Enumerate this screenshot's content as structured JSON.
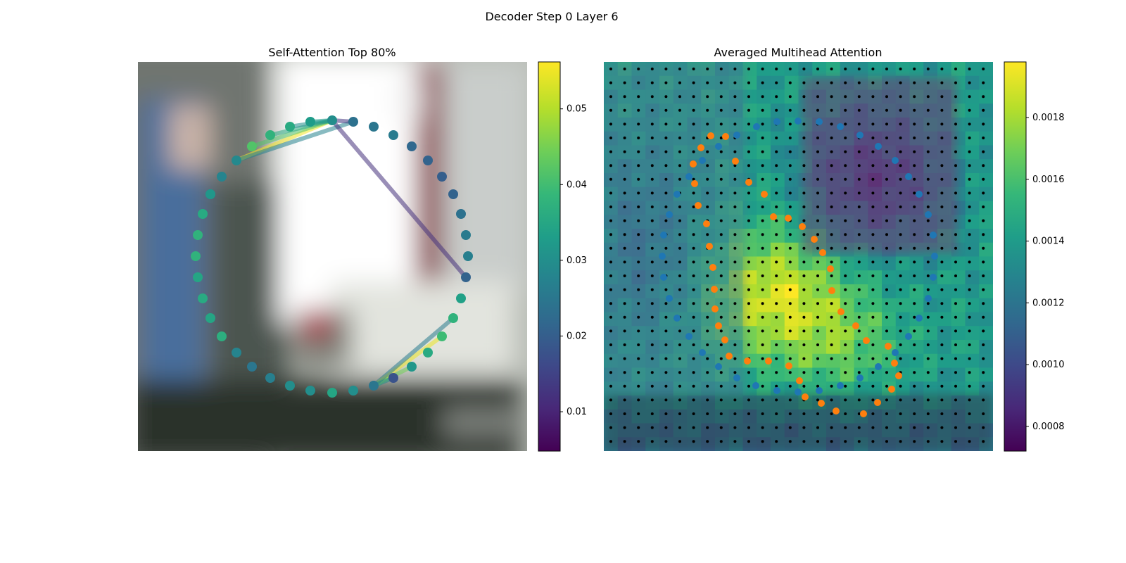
{
  "figure_title": "Decoder Step 0 Layer 6",
  "colormap": [
    "#440154",
    "#482878",
    "#3e4989",
    "#31688e",
    "#26828e",
    "#1f9e89",
    "#35b779",
    "#6ece58",
    "#b5de2b",
    "#fde725"
  ],
  "chart_data": [
    {
      "type": "scatter",
      "title": "Self-Attention Top 80%",
      "grid": false,
      "background": "blurred photograph",
      "axes_visible": false,
      "colorbar": {
        "range": [
          0.0048,
          0.0562
        ],
        "ticks": [
          0.01,
          0.02,
          0.03,
          0.04,
          0.05
        ],
        "tick_labels": [
          "0.01",
          "0.02",
          "0.03",
          "0.04",
          "0.05"
        ]
      },
      "edges_note": "attention links drawn between contour points",
      "edges": [
        {
          "from": 3,
          "to": 8,
          "value": 0.0555
        },
        {
          "from": 4,
          "to": 8,
          "value": 0.042
        },
        {
          "from": 5,
          "to": 8,
          "value": 0.036
        },
        {
          "from": 6,
          "to": 8,
          "value": 0.03
        },
        {
          "from": 3,
          "to": 9,
          "value": 0.028
        },
        {
          "from": 7,
          "to": 8,
          "value": 0.033
        },
        {
          "from": 8,
          "to": 19,
          "value": 0.012
        },
        {
          "from": 9,
          "to": 8,
          "value": 0.013
        },
        {
          "from": 22,
          "to": 26,
          "value": 0.0548
        },
        {
          "from": 24,
          "to": 26,
          "value": 0.045
        },
        {
          "from": 25,
          "to": 26,
          "value": 0.03
        },
        {
          "from": 21,
          "to": 26,
          "value": 0.026
        }
      ],
      "points_value": [
        0.026,
        0.027,
        0.028,
        0.029,
        0.042,
        0.038,
        0.036,
        0.033,
        0.03,
        0.024,
        0.025,
        0.026,
        0.022,
        0.021,
        0.02,
        0.021,
        0.024,
        0.026,
        0.027,
        0.021,
        0.034,
        0.038,
        0.04,
        0.036,
        0.032,
        0.018,
        0.025,
        0.03,
        0.035,
        0.03,
        0.03,
        0.027,
        0.025,
        0.028,
        0.037,
        0.035,
        0.036,
        0.035,
        0.038,
        0.038,
        0.036,
        0.032
      ]
    },
    {
      "type": "heatmap",
      "title": "Averaged Multihead Attention",
      "grid": false,
      "axes_visible": false,
      "colorbar": {
        "range": [
          0.00072,
          0.00198
        ],
        "ticks": [
          0.0008,
          0.001,
          0.0012,
          0.0014,
          0.0016,
          0.0018
        ],
        "tick_labels": [
          "0.0008",
          "0.0010",
          "0.0012",
          "0.0014",
          "0.0016",
          "0.0018"
        ]
      },
      "grid_size": [
        28,
        28
      ],
      "series": [
        {
          "color": "#1f77b4"
        },
        {
          "color": "#ff7f0e"
        },
        {
          "color": "#000000"
        }
      ]
    }
  ]
}
